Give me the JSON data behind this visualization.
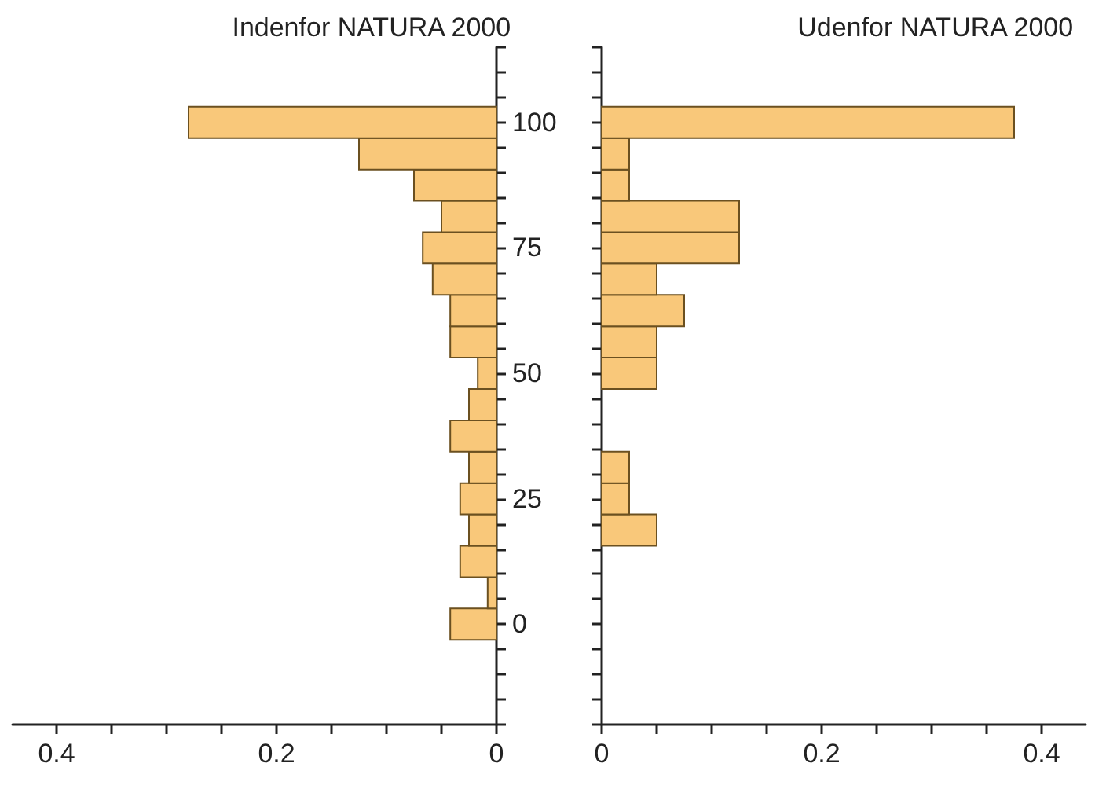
{
  "chart_data": [
    {
      "type": "histogram",
      "title": "Indenfor NATURA 2000",
      "orientation": "horizontal",
      "color": "#f9c87a",
      "bins": [
        -3.125,
        3.125,
        9.375,
        15.625,
        21.875,
        28.125,
        34.375,
        40.625,
        46.875,
        53.125,
        59.375,
        65.625,
        71.875,
        78.125,
        84.375,
        90.625,
        96.875,
        103.125
      ],
      "values": [
        0.042,
        0.008,
        0.033,
        0.025,
        0.033,
        0.025,
        0.042,
        0.025,
        0.017,
        0.042,
        0.042,
        0.058,
        0.067,
        0.05,
        0.075,
        0.125,
        0.28
      ],
      "xlim": [
        0.44,
        0
      ],
      "xticks": [
        0.4,
        {
          "value": 0.35,
          "label": null
        },
        {
          "value": 0.3,
          "label": null
        },
        {
          "value": 0.25,
          "label": null
        },
        0.2,
        {
          "value": 0.15,
          "label": null
        },
        {
          "value": 0.1,
          "label": null
        },
        {
          "value": 0.05,
          "label": null
        },
        0
      ],
      "ylim": [
        -20,
        115
      ],
      "yticks": [
        {
          "value": -20,
          "label": null
        },
        {
          "value": -15,
          "label": null
        },
        {
          "value": -10,
          "label": null
        },
        {
          "value": -5,
          "label": null
        },
        0,
        {
          "value": 5,
          "label": null
        },
        {
          "value": 10,
          "label": null
        },
        {
          "value": 15,
          "label": null
        },
        {
          "value": 20,
          "label": null
        },
        25,
        {
          "value": 30,
          "label": null
        },
        {
          "value": 35,
          "label": null
        },
        {
          "value": 40,
          "label": null
        },
        {
          "value": 45,
          "label": null
        },
        50,
        {
          "value": 55,
          "label": null
        },
        {
          "value": 60,
          "label": null
        },
        {
          "value": 65,
          "label": null
        },
        {
          "value": 70,
          "label": null
        },
        75,
        {
          "value": 80,
          "label": null
        },
        {
          "value": 85,
          "label": null
        },
        {
          "value": 90,
          "label": null
        },
        {
          "value": 95,
          "label": null
        },
        100,
        {
          "value": 105,
          "label": null
        },
        {
          "value": 110,
          "label": null
        },
        {
          "value": 115,
          "label": null
        }
      ],
      "grid": false
    },
    {
      "type": "histogram",
      "title": "Udenfor NATURA 2000",
      "orientation": "horizontal",
      "color": "#f9c87a",
      "tick_labels": "x",
      "bins": [
        -3.125,
        3.125,
        9.375,
        15.625,
        21.875,
        28.125,
        34.375,
        40.625,
        46.875,
        53.125,
        59.375,
        65.625,
        71.875,
        78.125,
        84.375,
        90.625,
        96.875,
        103.125
      ],
      "values": [
        0,
        0,
        0,
        0.05,
        0.025,
        0.025,
        0,
        0,
        0.05,
        0.05,
        0.075,
        0.05,
        0.125,
        0.125,
        0.025,
        0.025,
        0.375
      ],
      "xlim": [
        0,
        0.44
      ],
      "xticks": [
        0,
        {
          "value": 0.05,
          "label": null
        },
        {
          "value": 0.1,
          "label": null
        },
        {
          "value": 0.15,
          "label": null
        },
        0.2,
        {
          "value": 0.25,
          "label": null
        },
        {
          "value": 0.3,
          "label": null
        },
        {
          "value": 0.35,
          "label": null
        },
        0.4
      ],
      "ylim": [
        -20,
        115
      ],
      "yticks": [
        {
          "value": -20,
          "label": null
        },
        {
          "value": -15,
          "label": null
        },
        {
          "value": -10,
          "label": null
        },
        {
          "value": -5,
          "label": null
        },
        0,
        {
          "value": 5,
          "label": null
        },
        {
          "value": 10,
          "label": null
        },
        {
          "value": 15,
          "label": null
        },
        {
          "value": 20,
          "label": null
        },
        25,
        {
          "value": 30,
          "label": null
        },
        {
          "value": 35,
          "label": null
        },
        {
          "value": 40,
          "label": null
        },
        {
          "value": 45,
          "label": null
        },
        50,
        {
          "value": 55,
          "label": null
        },
        {
          "value": 60,
          "label": null
        },
        {
          "value": 65,
          "label": null
        },
        {
          "value": 70,
          "label": null
        },
        75,
        {
          "value": 80,
          "label": null
        },
        {
          "value": 85,
          "label": null
        },
        {
          "value": 90,
          "label": null
        },
        {
          "value": 95,
          "label": null
        },
        100,
        {
          "value": 105,
          "label": null
        },
        {
          "value": 110,
          "label": null
        },
        {
          "value": 115,
          "label": null
        }
      ],
      "grid": false
    }
  ]
}
